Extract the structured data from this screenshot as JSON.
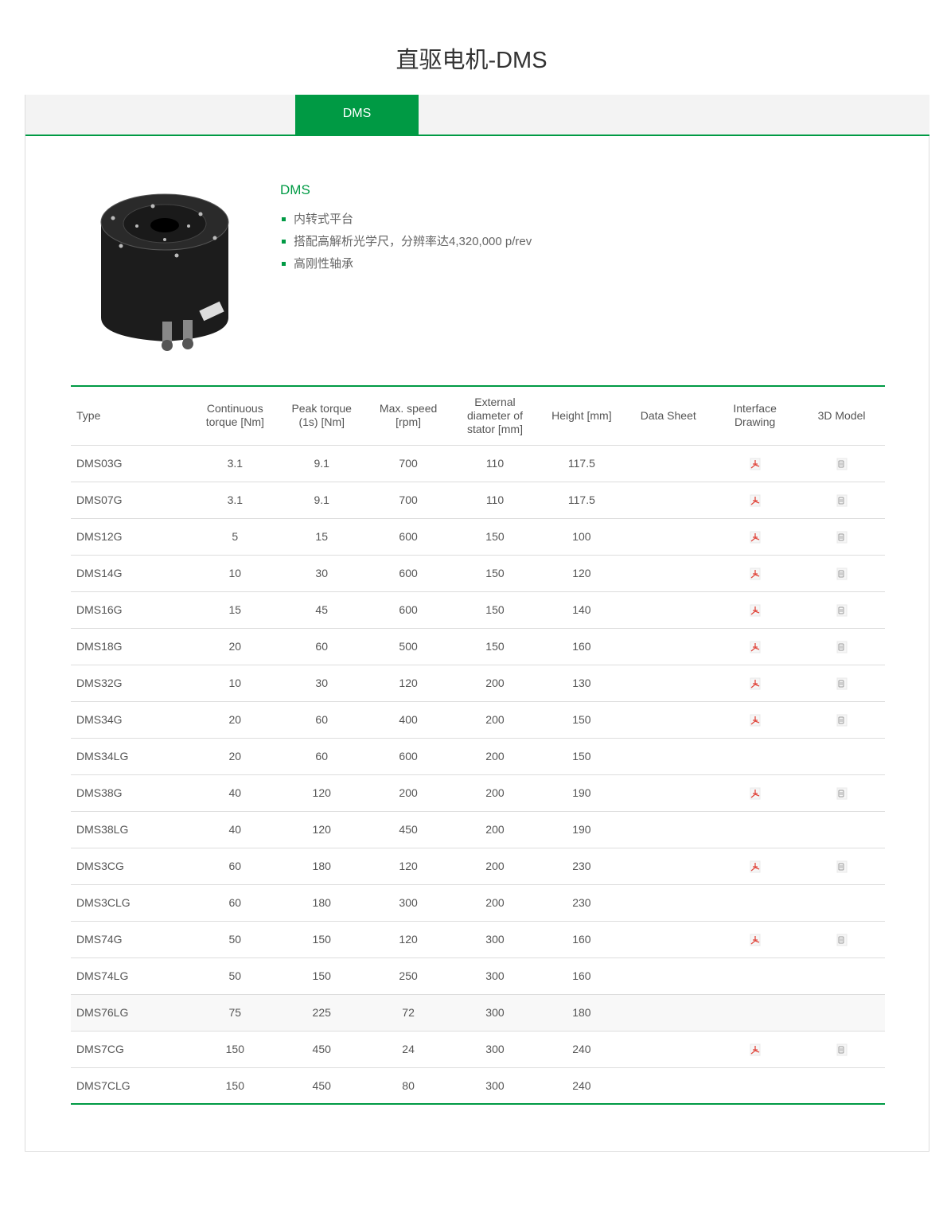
{
  "page_title": "直驱电机-DMS",
  "tabs": [
    {
      "label": "DMS",
      "active": true
    }
  ],
  "product": {
    "name": "DMS",
    "features": [
      "内转式平台",
      "搭配高解析光学尺，分辨率达4,320,000 p/rev",
      "高刚性轴承"
    ]
  },
  "table": {
    "headers": [
      "Type",
      "Continuous torque [Nm]",
      "Peak torque (1s) [Nm]",
      "Max. speed [rpm]",
      "External diameter of stator [mm]",
      "Height [mm]",
      "Data Sheet",
      "Interface Drawing",
      "3D Model"
    ],
    "rows": [
      {
        "type": "DMS03G",
        "cont": "3.1",
        "peak": "9.1",
        "speed": "700",
        "dia": "110",
        "height": "117.5",
        "drawing": true,
        "model": true
      },
      {
        "type": "DMS07G",
        "cont": "3.1",
        "peak": "9.1",
        "speed": "700",
        "dia": "110",
        "height": "117.5",
        "drawing": true,
        "model": true
      },
      {
        "type": "DMS12G",
        "cont": "5",
        "peak": "15",
        "speed": "600",
        "dia": "150",
        "height": "100",
        "drawing": true,
        "model": true
      },
      {
        "type": "DMS14G",
        "cont": "10",
        "peak": "30",
        "speed": "600",
        "dia": "150",
        "height": "120",
        "drawing": true,
        "model": true
      },
      {
        "type": "DMS16G",
        "cont": "15",
        "peak": "45",
        "speed": "600",
        "dia": "150",
        "height": "140",
        "drawing": true,
        "model": true
      },
      {
        "type": "DMS18G",
        "cont": "20",
        "peak": "60",
        "speed": "500",
        "dia": "150",
        "height": "160",
        "drawing": true,
        "model": true
      },
      {
        "type": "DMS32G",
        "cont": "10",
        "peak": "30",
        "speed": "120",
        "dia": "200",
        "height": "130",
        "drawing": true,
        "model": true
      },
      {
        "type": "DMS34G",
        "cont": "20",
        "peak": "60",
        "speed": "400",
        "dia": "200",
        "height": "150",
        "drawing": true,
        "model": true
      },
      {
        "type": "DMS34LG",
        "cont": "20",
        "peak": "60",
        "speed": "600",
        "dia": "200",
        "height": "150",
        "drawing": false,
        "model": false
      },
      {
        "type": "DMS38G",
        "cont": "40",
        "peak": "120",
        "speed": "200",
        "dia": "200",
        "height": "190",
        "drawing": true,
        "model": true
      },
      {
        "type": "DMS38LG",
        "cont": "40",
        "peak": "120",
        "speed": "450",
        "dia": "200",
        "height": "190",
        "drawing": false,
        "model": false
      },
      {
        "type": "DMS3CG",
        "cont": "60",
        "peak": "180",
        "speed": "120",
        "dia": "200",
        "height": "230",
        "drawing": true,
        "model": true
      },
      {
        "type": "DMS3CLG",
        "cont": "60",
        "peak": "180",
        "speed": "300",
        "dia": "200",
        "height": "230",
        "drawing": false,
        "model": false
      },
      {
        "type": "DMS74G",
        "cont": "50",
        "peak": "150",
        "speed": "120",
        "dia": "300",
        "height": "160",
        "drawing": true,
        "model": true
      },
      {
        "type": "DMS74LG",
        "cont": "50",
        "peak": "150",
        "speed": "250",
        "dia": "300",
        "height": "160",
        "drawing": false,
        "model": false
      },
      {
        "type": "DMS76LG",
        "cont": "75",
        "peak": "225",
        "speed": "72",
        "dia": "300",
        "height": "180",
        "drawing": false,
        "model": false,
        "highlighted": true
      },
      {
        "type": "DMS7CG",
        "cont": "150",
        "peak": "450",
        "speed": "24",
        "dia": "300",
        "height": "240",
        "drawing": true,
        "model": true
      },
      {
        "type": "DMS7CLG",
        "cont": "150",
        "peak": "450",
        "speed": "80",
        "dia": "300",
        "height": "240",
        "drawing": false,
        "model": false
      }
    ]
  },
  "colors": {
    "accent": "#009a44",
    "pdf_icon": "#e0463c"
  },
  "icons": {
    "drawing": "pdf-icon",
    "model": "3d-file-icon"
  }
}
